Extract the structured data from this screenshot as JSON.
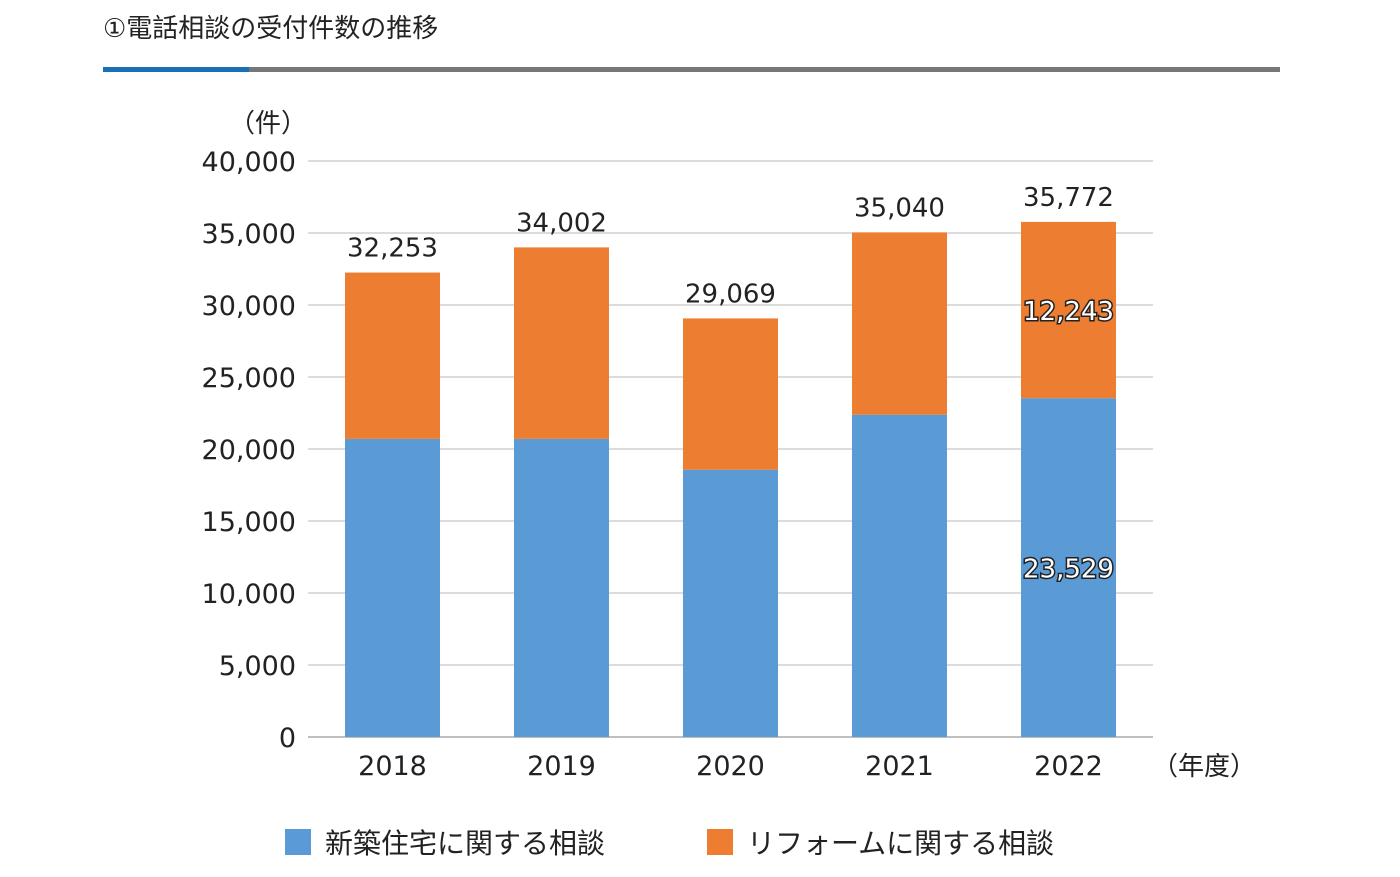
{
  "title": "①電話相談の受付件数の推移",
  "chart_data": {
    "type": "bar",
    "stacked": true,
    "categories": [
      "2018",
      "2019",
      "2020",
      "2021",
      "2022"
    ],
    "series": [
      {
        "name": "新築住宅に関する相談",
        "color": "#5b9bd5",
        "values": [
          20700,
          20700,
          18560,
          22380,
          23529
        ]
      },
      {
        "name": "リフォームに関する相談",
        "color": "#ed7d31",
        "values": [
          11553,
          13302,
          10509,
          12660,
          12243
        ]
      }
    ],
    "totals": [
      32253,
      34002,
      29069,
      35040,
      35772
    ],
    "total_labels": [
      "32,253",
      "34,002",
      "29,069",
      "35,040",
      "35,772"
    ],
    "segment_labels": {
      "category": "2022",
      "new_build": "23,529",
      "reform": "12,243"
    },
    "ylabel": "（件）",
    "xlabel": "（年度）",
    "ylim": [
      0,
      40000
    ],
    "yticks": [
      "0",
      "5,000",
      "10,000",
      "15,000",
      "20,000",
      "25,000",
      "30,000",
      "35,000",
      "40,000"
    ],
    "grid": true,
    "legend": "bottom"
  }
}
